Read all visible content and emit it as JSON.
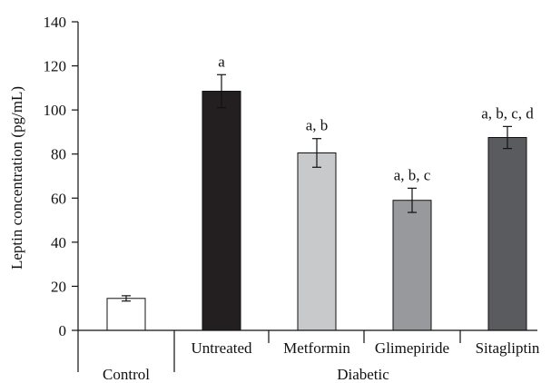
{
  "chart_data": {
    "type": "bar",
    "title": "",
    "ylabel": "Leptin concentration (pg/mL)",
    "ylim": [
      0,
      140
    ],
    "yticks": [
      0,
      20,
      40,
      60,
      80,
      100,
      120,
      140
    ],
    "grid": false,
    "categories": [
      "Control",
      "Untreated",
      "Metformin",
      "Glimepiride",
      "Sitagliptin"
    ],
    "values": [
      14.5,
      108.5,
      80.5,
      59,
      87.5
    ],
    "errors": [
      1.2,
      7.5,
      6.5,
      5.5,
      5
    ],
    "annotations": [
      "",
      "a",
      "a, b",
      "a, b, c",
      "a, b, c, d"
    ],
    "bar_colors": [
      "#ffffff",
      "#231f20",
      "#c8c9cb",
      "#97999d",
      "#5a5b5e"
    ],
    "groups": [
      {
        "label": "Control",
        "members": [
          "Control"
        ]
      },
      {
        "label": "Diabetic",
        "members": [
          "Untreated",
          "Metformin",
          "Glimepiride",
          "Sitagliptin"
        ]
      }
    ],
    "xtick_labels": [
      "",
      "Untreated",
      "Metformin",
      "Glimepiride",
      "Sitagliptin"
    ]
  }
}
